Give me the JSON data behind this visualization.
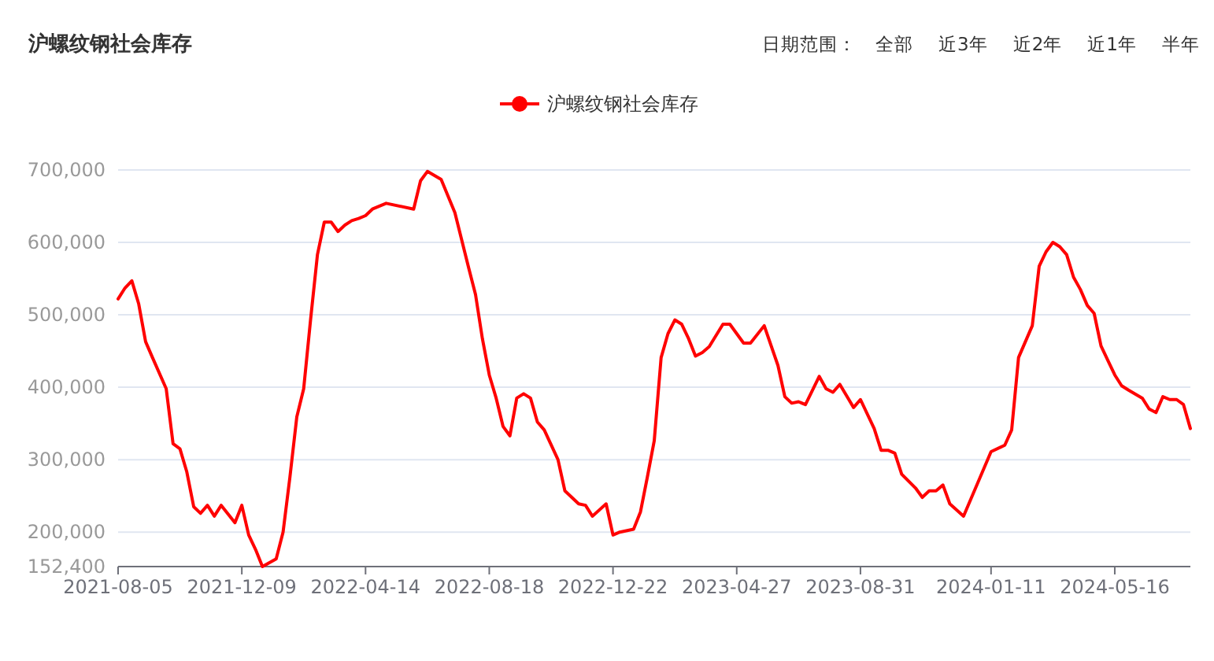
{
  "chart_data": {
    "type": "line",
    "title": "沪螺纹钢社会库存",
    "annotations": [
      "日期范围：",
      "全部",
      "近3年",
      "近2年",
      "近1年",
      "半年"
    ],
    "legend": "top",
    "grid": "y",
    "line_style": "solid",
    "marker": "none",
    "xlim": [
      "2021-08-05",
      "2024-08-01"
    ],
    "xticks": [
      "2021-08-05",
      "2021-12-09",
      "2022-04-14",
      "2022-08-18",
      "2022-12-22",
      "2023-04-27",
      "2023-08-31",
      "2024-01-11",
      "2024-05-16"
    ],
    "ylim": [
      152400,
      700000
    ],
    "yticks": [
      {
        "value": 152400,
        "label": "152,400"
      },
      {
        "value": 200000,
        "label": "200,000"
      },
      {
        "value": 300000,
        "label": "300,000"
      },
      {
        "value": 400000,
        "label": "400,000"
      },
      {
        "value": 500000,
        "label": "500,000"
      },
      {
        "value": 600000,
        "label": "600,000"
      },
      {
        "value": 700000,
        "label": "700,000"
      }
    ],
    "series": [
      {
        "name": "沪螺纹钢社会库存",
        "color": "#ff0000",
        "x": [
          "2021-08-05",
          "2021-08-12",
          "2021-08-19",
          "2021-08-26",
          "2021-09-02",
          "2021-09-09",
          "2021-09-23",
          "2021-09-30",
          "2021-10-07",
          "2021-10-14",
          "2021-10-21",
          "2021-10-28",
          "2021-11-04",
          "2021-11-11",
          "2021-11-18",
          "2021-12-02",
          "2021-12-09",
          "2021-12-16",
          "2021-12-23",
          "2021-12-30",
          "2022-01-13",
          "2022-01-20",
          "2022-01-27",
          "2022-02-03",
          "2022-02-10",
          "2022-02-17",
          "2022-02-24",
          "2022-03-03",
          "2022-03-10",
          "2022-03-17",
          "2022-03-24",
          "2022-03-31",
          "2022-04-07",
          "2022-04-14",
          "2022-04-21",
          "2022-05-05",
          "2022-06-02",
          "2022-06-09",
          "2022-06-16",
          "2022-06-30",
          "2022-07-14",
          "2022-07-28",
          "2022-08-04",
          "2022-08-11",
          "2022-08-18",
          "2022-08-25",
          "2022-09-01",
          "2022-09-08",
          "2022-09-15",
          "2022-09-22",
          "2022-09-29",
          "2022-10-06",
          "2022-10-13",
          "2022-10-27",
          "2022-11-03",
          "2022-11-17",
          "2022-11-24",
          "2022-12-01",
          "2022-12-15",
          "2022-12-22",
          "2022-12-29",
          "2023-01-12",
          "2023-01-19",
          "2023-01-26",
          "2023-02-02",
          "2023-02-09",
          "2023-02-16",
          "2023-02-23",
          "2023-03-02",
          "2023-03-09",
          "2023-03-16",
          "2023-03-23",
          "2023-03-30",
          "2023-04-13",
          "2023-04-20",
          "2023-04-27",
          "2023-05-04",
          "2023-05-11",
          "2023-05-25",
          "2023-06-08",
          "2023-06-15",
          "2023-06-22",
          "2023-06-29",
          "2023-07-06",
          "2023-07-20",
          "2023-07-27",
          "2023-08-03",
          "2023-08-10",
          "2023-08-24",
          "2023-08-31",
          "2023-09-14",
          "2023-09-21",
          "2023-09-28",
          "2023-10-05",
          "2023-10-12",
          "2023-10-26",
          "2023-11-02",
          "2023-11-09",
          "2023-11-16",
          "2023-11-23",
          "2023-11-30",
          "2023-12-14",
          "2024-01-11",
          "2024-01-25",
          "2024-02-01",
          "2024-02-08",
          "2024-02-22",
          "2024-02-29",
          "2024-03-07",
          "2024-03-14",
          "2024-03-21",
          "2024-03-28",
          "2024-04-04",
          "2024-04-11",
          "2024-04-18",
          "2024-04-25",
          "2024-05-02",
          "2024-05-09",
          "2024-05-16",
          "2024-05-23",
          "2024-05-30",
          "2024-06-13",
          "2024-06-20",
          "2024-06-27",
          "2024-07-04",
          "2024-07-11",
          "2024-07-18",
          "2024-07-25",
          "2024-08-01"
        ],
        "values": [
          522000,
          537000,
          547000,
          515000,
          463000,
          441000,
          398000,
          322000,
          315000,
          283000,
          235000,
          226000,
          237000,
          222000,
          237000,
          213000,
          237000,
          196000,
          176000,
          152400,
          163000,
          200000,
          276000,
          359000,
          398000,
          493000,
          583000,
          628000,
          628000,
          615000,
          624000,
          630000,
          633000,
          637000,
          646000,
          654000,
          646000,
          685000,
          698000,
          687000,
          641000,
          565000,
          528000,
          467000,
          417000,
          385000,
          346000,
          333000,
          385000,
          391000,
          385000,
          352000,
          341000,
          300000,
          257000,
          239000,
          237000,
          222000,
          239000,
          196000,
          200000,
          204000,
          228000,
          276000,
          326000,
          441000,
          474000,
          493000,
          487000,
          467000,
          443000,
          448000,
          456000,
          487000,
          487000,
          474000,
          461000,
          461000,
          485000,
          430000,
          387000,
          378000,
          380000,
          376000,
          415000,
          398000,
          393000,
          404000,
          372000,
          383000,
          343000,
          313000,
          313000,
          309000,
          280000,
          261000,
          248000,
          257000,
          257000,
          265000,
          239000,
          222000,
          311000,
          320000,
          341000,
          441000,
          485000,
          567000,
          587000,
          600000,
          594000,
          583000,
          552000,
          535000,
          513000,
          502000,
          457000,
          437000,
          417000,
          402000,
          396000,
          385000,
          370000,
          365000,
          387000,
          383000,
          383000,
          376000,
          343000
        ]
      }
    ]
  }
}
